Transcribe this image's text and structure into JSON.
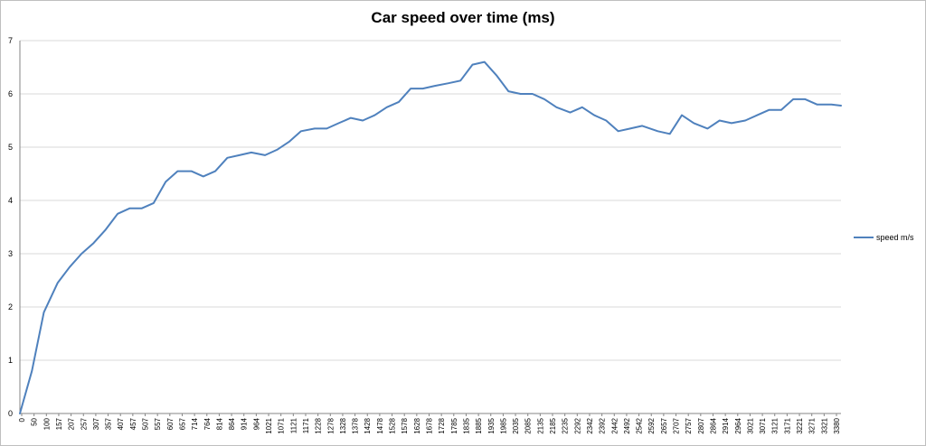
{
  "chart_data": {
    "type": "line",
    "title": "Car speed over time (ms)",
    "xlabel": "",
    "ylabel": "",
    "ylim": [
      0,
      7
    ],
    "y_ticks": [
      "0",
      "1",
      "2",
      "3",
      "4",
      "5",
      "6",
      "7"
    ],
    "grid": "horizontal",
    "legend_position": "right",
    "line_color": "#4f81bd",
    "x_tick_labels": [
      "0",
      "50",
      "100",
      "157",
      "207",
      "257",
      "307",
      "357",
      "407",
      "457",
      "507",
      "557",
      "607",
      "657",
      "714",
      "764",
      "814",
      "864",
      "914",
      "964",
      "1021",
      "1071",
      "1121",
      "1171",
      "1228",
      "1278",
      "1328",
      "1378",
      "1428",
      "1478",
      "1528",
      "1578",
      "1628",
      "1678",
      "1728",
      "1785",
      "1835",
      "1885",
      "1935",
      "1985",
      "2035",
      "2085",
      "2135",
      "2185",
      "2235",
      "2292",
      "2342",
      "2392",
      "2442",
      "2492",
      "2542",
      "2592",
      "2657",
      "2707",
      "2757",
      "2807",
      "2864",
      "2914",
      "2964",
      "3021",
      "3071",
      "3121",
      "3171",
      "3221",
      "3271",
      "3321",
      "3380"
    ],
    "series": [
      {
        "name": "speed m/s",
        "x": [
          0,
          50,
          100,
          157,
          207,
          257,
          307,
          357,
          407,
          457,
          507,
          557,
          607,
          657,
          714,
          764,
          814,
          864,
          914,
          964,
          1021,
          1071,
          1121,
          1171,
          1228,
          1278,
          1328,
          1378,
          1428,
          1478,
          1528,
          1578,
          1628,
          1678,
          1728,
          1785,
          1835,
          1885,
          1935,
          1985,
          2035,
          2085,
          2135,
          2185,
          2235,
          2292,
          2342,
          2392,
          2442,
          2492,
          2542,
          2592,
          2657,
          2707,
          2757,
          2807,
          2864,
          2914,
          2964,
          3021,
          3071,
          3121,
          3171,
          3221,
          3271,
          3321,
          3380,
          3420
        ],
        "values": [
          0,
          0.8,
          1.9,
          2.45,
          2.75,
          3.0,
          3.2,
          3.45,
          3.75,
          3.85,
          3.85,
          3.95,
          4.35,
          4.55,
          4.55,
          4.45,
          4.55,
          4.8,
          4.85,
          4.9,
          4.85,
          4.95,
          5.1,
          5.3,
          5.35,
          5.35,
          5.45,
          5.55,
          5.5,
          5.6,
          5.75,
          5.85,
          6.1,
          6.1,
          6.15,
          6.2,
          6.25,
          6.55,
          6.6,
          6.35,
          6.05,
          6.0,
          6.0,
          5.9,
          5.75,
          5.65,
          5.75,
          5.6,
          5.5,
          5.3,
          5.35,
          5.4,
          5.3,
          5.25,
          5.6,
          5.45,
          5.35,
          5.5,
          5.45,
          5.5,
          5.6,
          5.7,
          5.7,
          5.9,
          5.9,
          5.8,
          5.8,
          5.78
        ]
      }
    ]
  }
}
